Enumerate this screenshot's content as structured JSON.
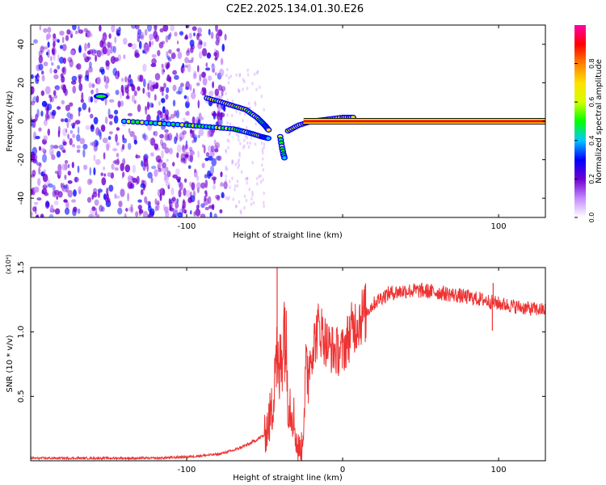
{
  "title": "C2E2.2025.134.01.30.E26",
  "chart_data": [
    {
      "type": "heatmap",
      "name": "spectrogram",
      "xlabel": "Height of straight line (km)",
      "ylabel": "Frequency (Hz)",
      "xlim": [
        -200,
        130
      ],
      "ylim": [
        -50,
        50
      ],
      "xticks": [
        -100,
        0,
        100
      ],
      "xtick_labels": [
        "-100",
        "",
        "100"
      ],
      "yticks": [
        -40,
        -20,
        0,
        20,
        40
      ],
      "ytick_labels": [
        "-40",
        "-20",
        "0",
        "20",
        "40"
      ],
      "tone": {
        "freq": 0,
        "x_start": -25,
        "x_end": 130,
        "value": 0.9
      },
      "branch_upper": [
        [
          -87,
          12
        ],
        [
          -78,
          10
        ],
        [
          -70,
          8
        ],
        [
          -62,
          6
        ],
        [
          -55,
          2
        ],
        [
          -50,
          -2
        ],
        [
          -47,
          -5
        ]
      ],
      "branch_mid": [
        [
          -140,
          0
        ],
        [
          -120,
          -1
        ],
        [
          -100,
          -2
        ],
        [
          -85,
          -3
        ],
        [
          -70,
          -4
        ],
        [
          -60,
          -6
        ],
        [
          -52,
          -8
        ],
        [
          -47,
          -9
        ]
      ],
      "branch_down": [
        [
          -40,
          -8
        ],
        [
          -39,
          -13
        ],
        [
          -38,
          -17
        ],
        [
          -37,
          -20
        ]
      ],
      "branch_rise": [
        [
          -35,
          -5
        ],
        [
          -28,
          -2
        ],
        [
          -20,
          0
        ],
        [
          -10,
          1
        ],
        [
          0,
          2
        ],
        [
          8,
          2
        ]
      ],
      "blob_left": {
        "x": -155,
        "freq": 13
      },
      "colorbar": {
        "label": "Normalized spectral amplitude",
        "ticks": [
          0.0,
          0.2,
          0.4,
          0.6,
          0.8
        ],
        "tick_labels": [
          "0.0",
          "0.2",
          "0.4",
          "0.6",
          "0.8"
        ],
        "colors": [
          "#ffffff",
          "#c488ff",
          "#7000d0",
          "#0000ff",
          "#00c8ff",
          "#00ff00",
          "#d4ff00",
          "#ffe000",
          "#ff8000",
          "#ff0000",
          "#ff00aa"
        ]
      }
    },
    {
      "type": "line",
      "name": "snr",
      "xlabel": "Height of straight line (km)",
      "ylabel": "SNR (10 * v/v)",
      "y_multiplier": "(x10⁴)",
      "xlim": [
        -200,
        130
      ],
      "ylim": [
        0,
        1.5
      ],
      "xticks": [
        -100,
        0,
        100
      ],
      "xtick_labels": [
        "-100",
        "0",
        "100"
      ],
      "yticks": [
        0.5,
        1.0,
        1.5
      ],
      "ytick_labels": [
        "0.5",
        "1.0",
        "1.5"
      ],
      "color": "#ee3333",
      "envelope": [
        [
          -200,
          0.02
        ],
        [
          -120,
          0.02
        ],
        [
          -100,
          0.03
        ],
        [
          -80,
          0.05
        ],
        [
          -70,
          0.08
        ],
        [
          -60,
          0.13
        ],
        [
          -50,
          0.2
        ],
        [
          -45,
          0.4
        ],
        [
          -43,
          0.9
        ],
        [
          -41,
          0.6
        ],
        [
          -39,
          0.9
        ],
        [
          -37,
          1.1
        ],
        [
          -35,
          0.5
        ],
        [
          -32,
          0.4
        ],
        [
          -29,
          0.1
        ],
        [
          -26,
          0.1
        ],
        [
          -24,
          0.6
        ],
        [
          -20,
          0.85
        ],
        [
          -15,
          1.05
        ],
        [
          -10,
          0.9
        ],
        [
          -5,
          0.85
        ],
        [
          0,
          0.85
        ],
        [
          5,
          1.0
        ],
        [
          10,
          1.1
        ],
        [
          15,
          1.15
        ],
        [
          20,
          1.22
        ],
        [
          25,
          1.27
        ],
        [
          30,
          1.3
        ],
        [
          40,
          1.32
        ],
        [
          50,
          1.32
        ],
        [
          60,
          1.31
        ],
        [
          70,
          1.29
        ],
        [
          80,
          1.27
        ],
        [
          90,
          1.25
        ],
        [
          100,
          1.22
        ],
        [
          110,
          1.2
        ],
        [
          120,
          1.18
        ],
        [
          130,
          1.17
        ]
      ],
      "spikes": [
        [
          -42,
          1.5
        ],
        [
          96,
          1.01
        ],
        [
          96.5,
          1.38
        ]
      ]
    }
  ]
}
